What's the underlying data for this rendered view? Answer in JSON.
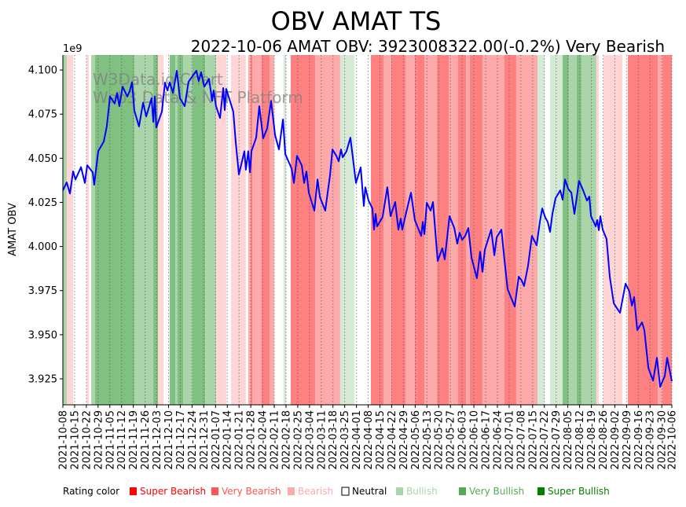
{
  "chart_data": {
    "type": "line",
    "title": "OBV AMAT TS",
    "subtitle": "2022-10-06 AMAT OBV: 3923008322.00(-0.2%) Very Bearish",
    "ylabel": "AMAT OBV",
    "xlabel": "",
    "y_scale_label": "1e9",
    "ylim": [
      3.9103,
      4.1085
    ],
    "xlim_days": [
      0,
      363
    ],
    "start_date": "2021-10-08",
    "yticks": [
      3.925,
      3.95,
      3.975,
      4.0,
      4.025,
      4.05,
      4.075,
      4.1
    ],
    "ytick_labels": [
      "3.925",
      "3.950",
      "3.975",
      "4.000",
      "4.025",
      "4.050",
      "4.075",
      "4.100"
    ],
    "xtick_days": [
      0,
      7,
      14,
      21,
      28,
      35,
      42,
      49,
      56,
      63,
      70,
      77,
      84,
      91,
      98,
      105,
      112,
      119,
      126,
      133,
      140,
      147,
      154,
      161,
      168,
      175,
      182,
      189,
      196,
      203,
      210,
      217,
      224,
      231,
      238,
      245,
      252,
      259,
      266,
      273,
      280,
      287,
      294,
      301,
      308,
      315,
      322,
      329,
      336,
      343,
      350,
      357,
      363
    ],
    "xtick_labels": [
      "2021-10-08",
      "2021-10-15",
      "2021-10-22",
      "2021-10-29",
      "2021-11-05",
      "2021-11-12",
      "2021-11-19",
      "2021-11-26",
      "2021-12-03",
      "2021-12-10",
      "2021-12-17",
      "2021-12-24",
      "2021-12-31",
      "2022-01-07",
      "2022-01-14",
      "2022-01-21",
      "2022-01-28",
      "2022-02-04",
      "2022-02-11",
      "2022-02-18",
      "2022-02-25",
      "2022-03-04",
      "2022-03-11",
      "2022-03-18",
      "2022-03-25",
      "2022-04-01",
      "2022-04-08",
      "2022-04-15",
      "2022-04-22",
      "2022-04-29",
      "2022-05-06",
      "2022-05-13",
      "2022-05-20",
      "2022-05-27",
      "2022-06-03",
      "2022-06-10",
      "2022-06-17",
      "2022-06-24",
      "2022-07-01",
      "2022-07-08",
      "2022-07-15",
      "2022-07-22",
      "2022-07-29",
      "2022-08-05",
      "2022-08-12",
      "2022-08-19",
      "2022-08-26",
      "2022-09-02",
      "2022-09-09",
      "2022-09-16",
      "2022-09-23",
      "2022-09-30",
      "2022-10-06"
    ],
    "grid": "vertical-dotted",
    "line_color": "#0000ff",
    "series": [
      {
        "name": "OBV",
        "x_days": [
          0,
          2.3,
          4.2,
          6.1,
          7.5,
          10.8,
          13.1,
          14.5,
          17.8,
          18.7,
          21.1,
          24.4,
          26.2,
          28.1,
          30.9,
          32.3,
          33.7,
          35.6,
          38.4,
          39.8,
          41.2,
          42.6,
          45.4,
          47.8,
          49.7,
          52.9,
          53.9,
          54.8,
          55.7,
          59.0,
          60.9,
          62.3,
          63.7,
          65.6,
          67.9,
          69.8,
          72.6,
          74.9,
          79.6,
          81.0,
          82.4,
          84.3,
          87.1,
          89.0,
          89.9,
          91.3,
          93.7,
          95.6,
          96.5,
          97.4,
          101.6,
          103.0,
          104.9,
          108.2,
          109.1,
          110.5,
          111.5,
          112.4,
          115.2,
          117.1,
          119.4,
          121.8,
          124.1,
          126.5,
          128.8,
          131.2,
          132.6,
          136.3,
          137.7,
          139.6,
          142.4,
          143.8,
          145.2,
          146.6,
          149.9,
          151.8,
          153.2,
          156.4,
          159.3,
          160.7,
          163.0,
          164.4,
          165.8,
          166.8,
          169.1,
          171.4,
          174.7,
          177.5,
          179.4,
          180.3,
          182.2,
          184.5,
          185.5,
          186.4,
          187.3,
          190.6,
          193.4,
          195.3,
          198.1,
          200.0,
          201.4,
          202.3,
          204.7,
          207.5,
          209.8,
          213.6,
          214.5,
          215.5,
          216.9,
          219.2,
          220.6,
          223.4,
          226.2,
          227.6,
          230.5,
          233.3,
          235.1,
          236.5,
          238.0,
          239.8,
          241.7,
          243.6,
          246.8,
          248.7,
          250.1,
          251.5,
          255.3,
          257.2,
          258.6,
          261.4,
          263.2,
          265.1,
          269.3,
          271.7,
          273.5,
          274.9,
          277.3,
          279.6,
          282.4,
          284.3,
          285.7,
          287.6,
          289.0,
          290.4,
          291.8,
          293.7,
          296.5,
          297.9,
          299.3,
          301.2,
          303.1,
          304.9,
          307.7,
          310.1,
          312.4,
          313.8,
          314.8,
          317.6,
          318.5,
          319.5,
          320.4,
          321.8,
          324.1,
          326.0,
          328.4,
          332.1,
          335.4,
          337.7,
          339.2,
          340.5,
          342.4,
          345.2,
          346.6,
          349.0,
          351.8,
          354.1,
          356.0,
          358.8,
          360.2,
          363.0
        ],
        "values": [
          4.0318,
          4.0363,
          4.03,
          4.0426,
          4.038,
          4.045,
          4.036,
          4.046,
          4.042,
          4.035,
          4.054,
          4.0595,
          4.068,
          4.085,
          4.081,
          4.087,
          4.0795,
          4.0906,
          4.085,
          4.088,
          4.093,
          4.077,
          4.068,
          4.0815,
          4.0737,
          4.084,
          4.0706,
          4.085,
          4.0675,
          4.0764,
          4.0929,
          4.0884,
          4.093,
          4.087,
          4.0996,
          4.084,
          4.0795,
          4.0933,
          4.0996,
          4.0938,
          4.0987,
          4.0906,
          4.095,
          4.0826,
          4.0884,
          4.0795,
          4.0728,
          4.0898,
          4.0773,
          4.0893,
          4.0764,
          4.0595,
          4.0408,
          4.054,
          4.0435,
          4.054,
          4.042,
          4.054,
          4.0617,
          4.0795,
          4.0613,
          4.067,
          4.0826,
          4.063,
          4.055,
          4.072,
          4.0523,
          4.0443,
          4.036,
          4.0514,
          4.046,
          4.036,
          4.0425,
          4.0305,
          4.0203,
          4.038,
          4.028,
          4.0203,
          4.0408,
          4.055,
          4.0514,
          4.0483,
          4.055,
          4.0505,
          4.054,
          4.0617,
          4.036,
          4.0448,
          4.023,
          4.0336,
          4.026,
          4.0216,
          4.0096,
          4.0185,
          4.0114,
          4.0167,
          4.0336,
          4.0172,
          4.0252,
          4.0096,
          4.0158,
          4.0096,
          4.0194,
          4.0305,
          4.015,
          4.006,
          4.014,
          4.007,
          4.0248,
          4.0203,
          4.0252,
          3.9918,
          3.999,
          3.9927,
          4.0172,
          4.0105,
          4.0016,
          4.0078,
          4.0038,
          4.006,
          4.0105,
          3.9936,
          3.982,
          3.997,
          3.9856,
          3.998,
          4.0096,
          3.995,
          4.0052,
          4.0096,
          3.9927,
          3.9758,
          3.966,
          3.9829,
          3.9807,
          3.9776,
          3.9891,
          4.006,
          4.0007,
          4.014,
          4.0216,
          4.0163,
          4.014,
          4.0083,
          4.0185,
          4.0274,
          4.0318,
          4.0265,
          4.038,
          4.0327,
          4.0305,
          4.0185,
          4.0372,
          4.0318,
          4.026,
          4.0283,
          4.0172,
          4.0114,
          4.015,
          4.0092,
          4.0172,
          4.0096,
          4.0043,
          3.9829,
          3.9678,
          3.9624,
          3.979,
          3.9745,
          3.9665,
          3.9714,
          3.9526,
          3.957,
          3.9526,
          3.9312,
          3.924,
          3.937,
          3.9205,
          3.9267,
          3.937,
          3.9236
        ]
      }
    ],
    "band_colors": {
      "r1": "#ffd5d5",
      "r2": "#ffaaaa",
      "r3": "#ff8080",
      "g1": "#d5ead5",
      "g2": "#aad4aa",
      "g3": "#80c080"
    },
    "rating_bands": [
      [
        0,
        2.3,
        "g2"
      ],
      [
        2.3,
        6.1,
        "r1"
      ],
      [
        14.1,
        15.5,
        "r1"
      ],
      [
        16.9,
        19.2,
        "g2"
      ],
      [
        19.2,
        37.0,
        "g3"
      ],
      [
        37.0,
        42.6,
        "g3"
      ],
      [
        42.6,
        53.9,
        "g2"
      ],
      [
        53.9,
        56.7,
        "g3"
      ],
      [
        56.7,
        60.0,
        "r1"
      ],
      [
        63.7,
        67.0,
        "g3"
      ],
      [
        67.0,
        68.4,
        "g2"
      ],
      [
        68.4,
        71.7,
        "g3"
      ],
      [
        71.7,
        77.3,
        "g2"
      ],
      [
        77.3,
        84.8,
        "g3"
      ],
      [
        84.8,
        91.3,
        "g2"
      ],
      [
        91.3,
        97.4,
        "r1"
      ],
      [
        100.2,
        109.1,
        "r1"
      ],
      [
        110.5,
        111.9,
        "r2"
      ],
      [
        111.9,
        112.9,
        "r3"
      ],
      [
        112.9,
        118.5,
        "r2"
      ],
      [
        118.5,
        123.2,
        "r3"
      ],
      [
        123.2,
        126.0,
        "r2"
      ],
      [
        131.6,
        133.0,
        "g1"
      ],
      [
        135.8,
        150.4,
        "r3"
      ],
      [
        150.4,
        165.3,
        "r2"
      ],
      [
        165.3,
        173.8,
        "g1"
      ],
      [
        183.6,
        191.1,
        "r3"
      ],
      [
        191.1,
        195.8,
        "r2"
      ],
      [
        195.8,
        204.2,
        "r3"
      ],
      [
        204.2,
        209.8,
        "r2"
      ],
      [
        209.8,
        215.5,
        "r3"
      ],
      [
        215.5,
        223.0,
        "r2"
      ],
      [
        223.0,
        230.0,
        "r3"
      ],
      [
        230.0,
        235.6,
        "r2"
      ],
      [
        235.6,
        240.3,
        "r3"
      ],
      [
        240.3,
        242.6,
        "r2"
      ],
      [
        242.6,
        250.1,
        "r3"
      ],
      [
        250.1,
        263.2,
        "r2"
      ],
      [
        263.2,
        270.3,
        "r3"
      ],
      [
        270.3,
        282.9,
        "r2"
      ],
      [
        282.9,
        287.1,
        "g1"
      ],
      [
        290.4,
        297.9,
        "g1"
      ],
      [
        297.9,
        301.6,
        "g3"
      ],
      [
        301.6,
        306.3,
        "g2"
      ],
      [
        306.3,
        309.1,
        "g3"
      ],
      [
        309.1,
        318.0,
        "g2"
      ],
      [
        318.0,
        319.5,
        "r1"
      ],
      [
        322.3,
        333.5,
        "r1"
      ],
      [
        336.8,
        354.6,
        "r3"
      ],
      [
        354.6,
        357.4,
        "r2"
      ],
      [
        357.4,
        363,
        "r3"
      ]
    ],
    "watermark": [
      "W3Data.io Chart",
      "Web3 Data & NFT Platform"
    ],
    "legend": {
      "placement": "bottom",
      "title": "Rating color",
      "items": [
        {
          "label": "Super Bearish",
          "color": "#ff0000"
        },
        {
          "label": "Very Bearish",
          "color": "#ff5555"
        },
        {
          "label": "Bearish",
          "color": "#ffaaaa"
        },
        {
          "label": "Neutral",
          "color": "#ffffff"
        },
        {
          "label": "Bullish",
          "color": "#aad4aa"
        },
        {
          "label": "Very Bullish",
          "color": "#55aa55"
        },
        {
          "label": "Super Bullish",
          "color": "#008000"
        }
      ]
    }
  }
}
